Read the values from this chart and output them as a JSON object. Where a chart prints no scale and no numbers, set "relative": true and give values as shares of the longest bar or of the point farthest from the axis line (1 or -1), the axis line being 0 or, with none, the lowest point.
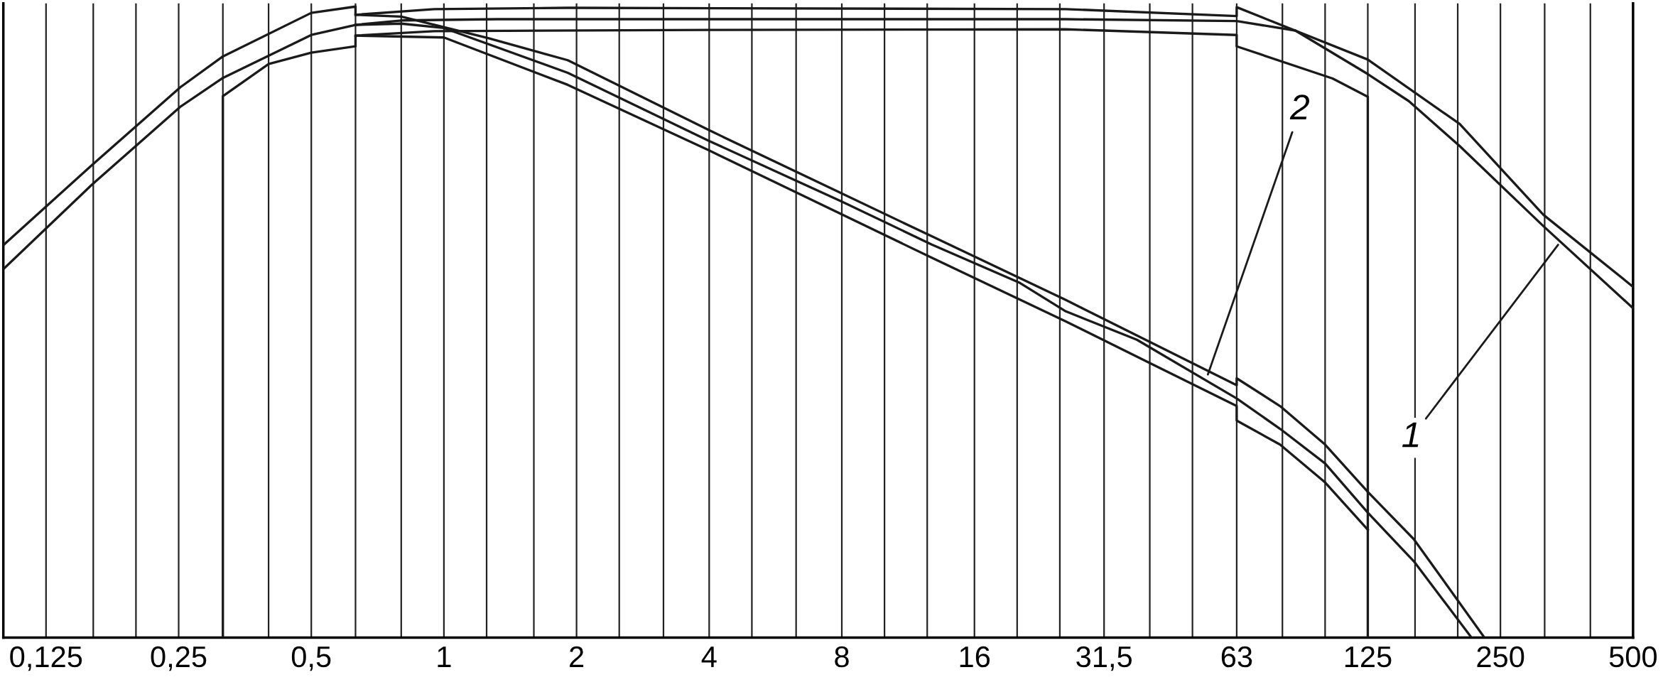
{
  "chart_data": {
    "type": "line",
    "relative": true,
    "tick_labels": "x",
    "grid": "x",
    "legend": false,
    "marker": "none",
    "line_style": "solid",
    "log": "x",
    "xlim": [
      0.1,
      500
    ],
    "xticks": [
      {
        "value": 0.125,
        "label": "0,125"
      },
      {
        "value": 0.16,
        "label": null
      },
      {
        "value": 0.2,
        "label": null
      },
      {
        "value": 0.25,
        "label": "0,25"
      },
      {
        "value": 0.315,
        "label": null
      },
      {
        "value": 0.4,
        "label": null
      },
      {
        "value": 0.5,
        "label": "0,5"
      },
      {
        "value": 0.63,
        "label": null
      },
      {
        "value": 0.8,
        "label": null
      },
      1,
      {
        "value": 1.25,
        "label": null
      },
      {
        "value": 1.6,
        "label": null
      },
      2,
      {
        "value": 2.5,
        "label": null
      },
      {
        "value": 3.15,
        "label": null
      },
      4,
      {
        "value": 5,
        "label": null
      },
      {
        "value": 6.3,
        "label": null
      },
      8,
      {
        "value": 10,
        "label": null
      },
      {
        "value": 12.5,
        "label": null
      },
      16,
      {
        "value": 20,
        "label": null
      },
      {
        "value": 25,
        "label": null
      },
      {
        "value": 31.5,
        "label": "31,5"
      },
      {
        "value": 40,
        "label": null
      },
      {
        "value": 50,
        "label": null
      },
      63,
      {
        "value": 80,
        "label": null
      },
      {
        "value": 100,
        "label": null
      },
      125,
      {
        "value": 160,
        "label": null
      },
      {
        "value": 200,
        "label": null
      },
      250,
      {
        "value": 315,
        "label": null
      },
      {
        "value": 400,
        "label": null
      },
      500
    ],
    "series": [
      {
        "color": "#1a1a1a",
        "x": [
          0.1,
          0.159,
          0.252,
          0.315,
          0.5,
          0.63,
          0.8,
          1.32,
          4,
          25.8,
          63,
          85.6,
          125,
          155,
          202,
          313,
          500
        ],
        "values": [
          0.584,
          0.718,
          0.841,
          0.887,
          0.955,
          0.971,
          0.978,
          0.98,
          0.98,
          0.98,
          0.977,
          0.962,
          0.893,
          0.85,
          0.779,
          0.652,
          0.522
        ]
      },
      {
        "color": "#1a1a1a",
        "x": [
          0.1,
          0.159,
          0.252,
          0.315,
          0.5,
          0.63,
          0.63,
          0.95,
          1.91,
          25.8,
          63,
          63,
          125,
          202,
          313,
          500
        ],
        "values": [
          0.622,
          0.749,
          0.872,
          0.921,
          0.99,
          1.0,
          0.987,
          0.996,
          0.998,
          0.996,
          0.985,
          0.999,
          0.916,
          0.814,
          0.67,
          0.556
        ]
      },
      {
        "color": "#1a1a1a",
        "x": [
          0.315,
          0.315,
          0.4,
          0.5,
          0.63,
          0.63,
          0.95,
          4,
          25.8,
          63,
          63,
          104,
          125,
          125
        ],
        "values": [
          0,
          0.858,
          0.909,
          0.927,
          0.937,
          0.954,
          0.961,
          0.963,
          0.964,
          0.955,
          0.937,
          0.886,
          0.857,
          0
        ]
      },
      {
        "color": "#1a1a1a",
        "x": [
          0.63,
          0.8,
          1.0,
          1.91,
          4,
          8,
          12.8,
          20.3,
          25.8,
          37.4,
          63,
          79,
          100,
          125,
          159,
          215
        ],
        "values": [
          0.971,
          0.973,
          0.966,
          0.895,
          0.787,
          0.691,
          0.623,
          0.562,
          0.517,
          0.472,
          0.379,
          0.331,
          0.276,
          0.198,
          0.121,
          0
        ]
      },
      {
        "color": "#1a1a1a",
        "x": [
          0.63,
          0.8,
          1.26,
          1.91,
          4,
          12.8,
          25.8,
          63,
          63,
          79,
          100,
          125,
          159,
          230
        ],
        "values": [
          0.987,
          0.984,
          0.95,
          0.915,
          0.804,
          0.636,
          0.535,
          0.4,
          0.411,
          0.367,
          0.306,
          0.231,
          0.156,
          0
        ]
      },
      {
        "color": "#1a1a1a",
        "x": [
          0.63,
          1.0,
          1.91,
          4,
          12.8,
          25.8,
          63,
          63,
          79,
          100,
          125
        ],
        "values": [
          0.954,
          0.951,
          0.876,
          0.772,
          0.602,
          0.501,
          0.367,
          0.344,
          0.306,
          0.246,
          0.171
        ]
      }
    ],
    "annotations": [
      {
        "text": "1",
        "x": 340,
        "y": 0.625
      },
      {
        "text": "2",
        "x": 54,
        "y": 0.414
      }
    ]
  }
}
